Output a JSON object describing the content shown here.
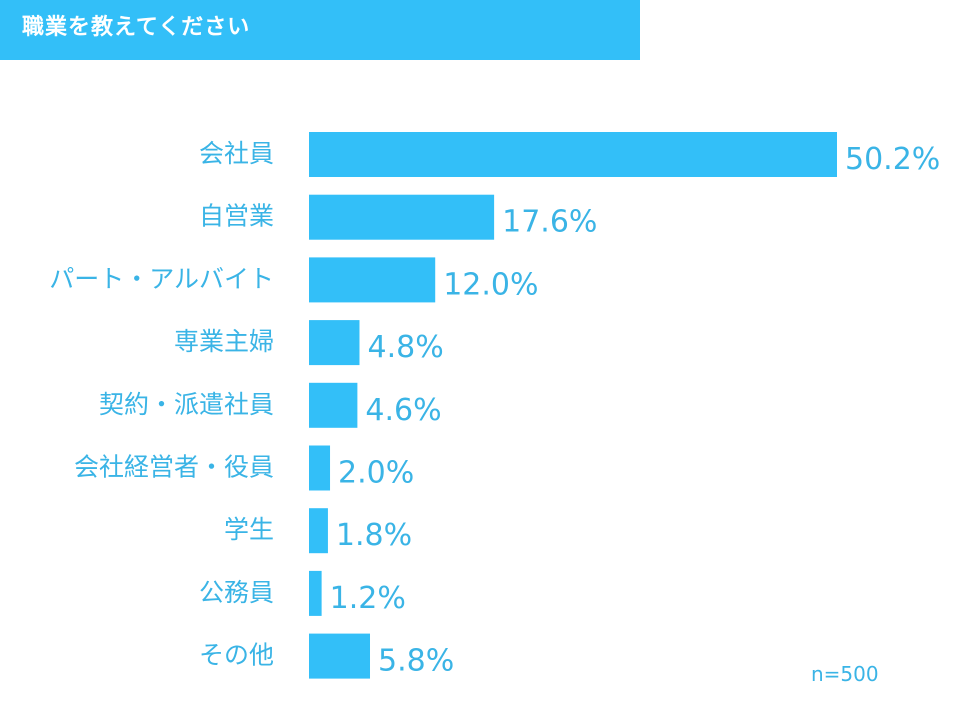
{
  "header": {
    "title": "職業を教えてください"
  },
  "sample_size": "n=500",
  "colors": {
    "bar": "#33bff8",
    "text": "#3ab4e6",
    "header_bg": "#33bff8"
  },
  "chart_data": {
    "type": "bar",
    "orientation": "horizontal",
    "title": "職業を教えてください",
    "categories": [
      "会社員",
      "自営業",
      "パート・アルバイト",
      "専業主婦",
      "契約・派遣社員",
      "会社経営者・役員",
      "学生",
      "公務員",
      "その他"
    ],
    "values": [
      50.2,
      17.6,
      12.0,
      4.8,
      4.6,
      2.0,
      1.8,
      1.2,
      5.8
    ],
    "value_labels": [
      "50.2%",
      "17.6%",
      "12.0%",
      "4.8%",
      "4.6%",
      "2.0%",
      "1.8%",
      "1.2%",
      "5.8%"
    ],
    "xlabel": "",
    "ylabel": "",
    "xlim": [
      0,
      50.2
    ],
    "grid": false,
    "legend": "none"
  }
}
